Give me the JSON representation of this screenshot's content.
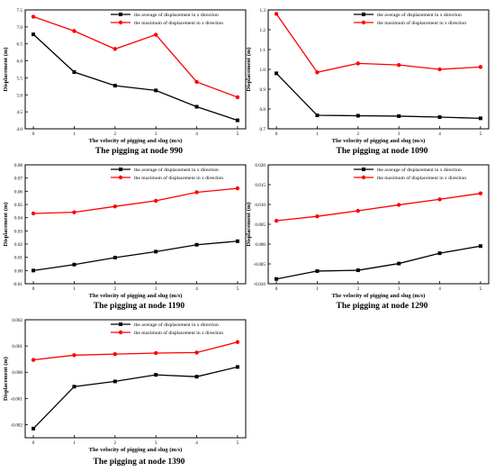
{
  "chart_data": [
    {
      "type": "line",
      "caption": "The pigging at node 990",
      "xlabel": "The velocity of pigging and slug (m/s)",
      "ylabel": "Displacement (m)",
      "x": [
        0,
        1,
        2,
        3,
        4,
        5
      ],
      "xlim": [
        -0.2,
        5.2
      ],
      "ylim": [
        4.0,
        7.5
      ],
      "yticks": [
        "4.0",
        "4.5",
        "5.0",
        "5.5",
        "6.0",
        "6.5",
        "7.0",
        "7.5"
      ],
      "legend": "top-center",
      "grid": false,
      "series": [
        {
          "name": "the average of displacement in x direction",
          "color": "#000000",
          "marker": "square",
          "values": [
            6.78,
            5.67,
            5.27,
            5.13,
            4.65,
            4.25
          ]
        },
        {
          "name": "the maximum of displacement in x direction",
          "color": "#ff0000",
          "marker": "circle",
          "values": [
            7.3,
            6.88,
            6.35,
            6.77,
            5.38,
            4.93
          ]
        }
      ]
    },
    {
      "type": "line",
      "caption": "The pigging at node 1090",
      "xlabel": "The velocity of pigging and slug (m/s)",
      "ylabel": "Displacement (m)",
      "x": [
        0,
        1,
        2,
        3,
        4,
        5
      ],
      "xlim": [
        -0.2,
        5.2
      ],
      "ylim": [
        0.7,
        1.3
      ],
      "yticks": [
        "0.7",
        "0.8",
        "0.9",
        "1.0",
        "1.1",
        "1.2",
        "1.3"
      ],
      "legend": "top-center",
      "grid": false,
      "series": [
        {
          "name": "the average of displacement in x direction",
          "color": "#000000",
          "marker": "square",
          "values": [
            0.98,
            0.768,
            0.766,
            0.764,
            0.759,
            0.753
          ]
        },
        {
          "name": "the maximum of displacement in x direction",
          "color": "#ff0000",
          "marker": "circle",
          "values": [
            1.28,
            0.985,
            1.03,
            1.022,
            1.0,
            1.012
          ]
        }
      ]
    },
    {
      "type": "line",
      "caption": "The pigging at node 1190",
      "xlabel": "The velocity of pigging and slug (m/s)",
      "ylabel": "Displacement (m)",
      "x": [
        0,
        1,
        2,
        3,
        4,
        5
      ],
      "xlim": [
        -0.2,
        5.2
      ],
      "ylim": [
        -0.01,
        0.08
      ],
      "yticks": [
        "-0.01",
        "0.00",
        "0.01",
        "0.02",
        "0.03",
        "0.04",
        "0.05",
        "0.06",
        "0.07",
        "0.08"
      ],
      "legend": "top-center",
      "grid": false,
      "series": [
        {
          "name": "the average of displacement in x direction",
          "color": "#000000",
          "marker": "square",
          "values": [
            0.0,
            0.0045,
            0.0098,
            0.0143,
            0.0195,
            0.0222
          ]
        },
        {
          "name": "the maximum of displacement in x direction",
          "color": "#ff0000",
          "marker": "circle",
          "values": [
            0.0432,
            0.0441,
            0.0485,
            0.0528,
            0.0592,
            0.0622
          ]
        }
      ]
    },
    {
      "type": "line",
      "caption": "The pigging at node 1290",
      "xlabel": "The velocity of pigging and slug (m/s)",
      "ylabel": "Displacement (m)",
      "x": [
        0,
        1,
        2,
        3,
        4,
        5
      ],
      "xlim": [
        -0.2,
        5.2
      ],
      "ylim": [
        -0.01,
        0.02
      ],
      "yticks": [
        "-0.010",
        "-0.005",
        "0.000",
        "0.005",
        "0.010",
        "0.015",
        "0.020"
      ],
      "legend": "top-center",
      "grid": false,
      "series": [
        {
          "name": "the average of displacement in x direction",
          "color": "#000000",
          "marker": "square",
          "values": [
            -0.0088,
            -0.0068,
            -0.0066,
            -0.0049,
            -0.0023,
            -0.0005
          ]
        },
        {
          "name": "the maximum of displacement in x direction",
          "color": "#ff0000",
          "marker": "circle",
          "values": [
            0.0059,
            0.007,
            0.0084,
            0.0099,
            0.0113,
            0.0128
          ]
        }
      ]
    },
    {
      "type": "line",
      "caption": "The pigging at node 1390",
      "xlabel": "The velocity of pigging and slug (m/s)",
      "ylabel": "Displacement (m)",
      "x": [
        0,
        1,
        2,
        3,
        4,
        5
      ],
      "xlim": [
        -0.2,
        5.2
      ],
      "ylim": [
        -0.0025,
        0.002
      ],
      "yticks": [
        "-0.002",
        "-0.001",
        "0.000",
        "0.001",
        "0.002"
      ],
      "legend": "top-center",
      "grid": false,
      "series": [
        {
          "name": "the average of displacement in x direction",
          "color": "#000000",
          "marker": "square",
          "values": [
            -0.00215,
            -0.00055,
            -0.00035,
            -0.0001,
            -0.00017,
            0.0002
          ]
        },
        {
          "name": "the maximum of displacement in x direction",
          "color": "#ff0000",
          "marker": "circle",
          "values": [
            0.00047,
            0.00065,
            0.00069,
            0.00073,
            0.00075,
            0.00115
          ]
        }
      ]
    }
  ]
}
